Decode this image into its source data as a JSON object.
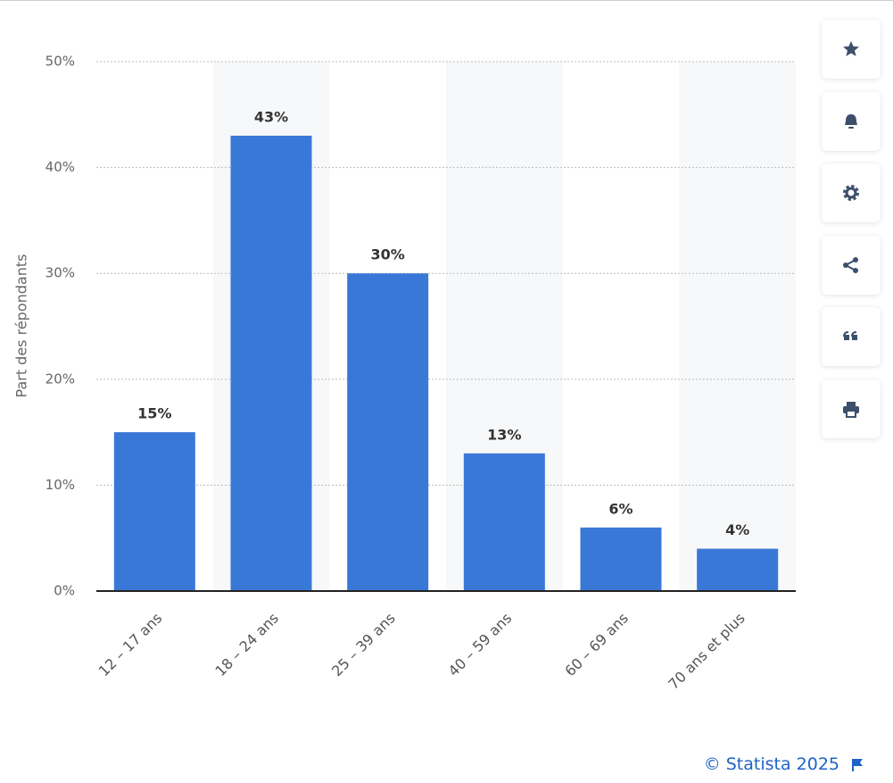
{
  "chart_data": {
    "type": "bar",
    "y_label": "Part des répondants",
    "categories": [
      "12 – 17 ans",
      "18 – 24 ans",
      "25 – 39 ans",
      "40 – 59 ans",
      "60 – 69 ans",
      "70 ans et plus"
    ],
    "values": [
      15,
      43,
      30,
      13,
      6,
      4
    ],
    "value_labels": [
      "15%",
      "43%",
      "30%",
      "13%",
      "6%",
      "4%"
    ],
    "color": "#3a78d8",
    "ylim": [
      0,
      50
    ],
    "yticks": [
      {
        "value": 0,
        "label": "0%"
      },
      {
        "value": 10,
        "label": "10%"
      },
      {
        "value": 20,
        "label": "20%"
      },
      {
        "value": 30,
        "label": "30%"
      },
      {
        "value": 40,
        "label": "40%"
      },
      {
        "value": 50,
        "label": "50%"
      }
    ],
    "grid": true
  },
  "footer": "© Statista 2025"
}
